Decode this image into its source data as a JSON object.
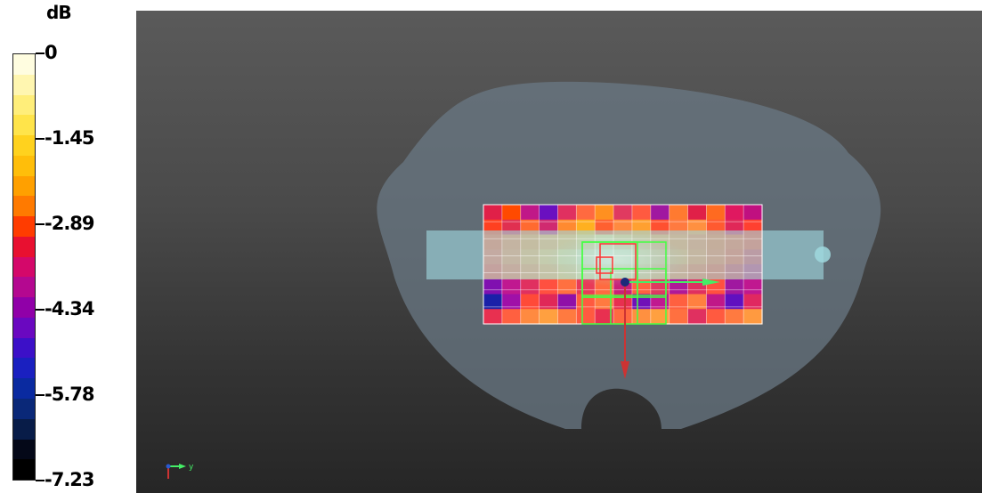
{
  "legend": {
    "unit": "dB",
    "ticks": [
      "0",
      "-1.45",
      "-2.89",
      "-4.34",
      "-5.78",
      "-7.23"
    ],
    "colors": [
      "#fffde0",
      "#fff6b0",
      "#ffee7a",
      "#ffe44a",
      "#ffd21e",
      "#ffbe0a",
      "#ffa000",
      "#ff7a00",
      "#ff3c00",
      "#e81030",
      "#d4086a",
      "#b40890",
      "#9000a8",
      "#6a08c0",
      "#3c10c8",
      "#1a20c0",
      "#0a2aa0",
      "#0a2878",
      "#081c48",
      "#040818",
      "#000000"
    ]
  },
  "scene": {
    "colors": {
      "background": "#4a4a4a",
      "phantom": "#6a7884",
      "probe_strip": "#9fd8de",
      "grid_line": "#ffffff",
      "green_frame": "#44ff44",
      "red_frame": "#ff3333",
      "z_axis": "#cc3333",
      "y_axis": "#44ee66",
      "origin": "#1a2a7a"
    },
    "axis_label": "y",
    "heatmap_rows": [
      [
        "#e02048",
        "#ff4a00",
        "#c01888",
        "#6a10c0",
        "#e03060",
        "#ff6a40",
        "#ff9020",
        "#e03a60",
        "#ff5a40",
        "#a018a0",
        "#ff7a30",
        "#e02048",
        "#ff6a20",
        "#e01860",
        "#c01080"
      ],
      [
        "#ff4020",
        "#e03050",
        "#ff6a30",
        "#d02a70",
        "#ff8a30",
        "#ffb020",
        "#ff6030",
        "#ff8a40",
        "#ffa030",
        "#ff5030",
        "#ff7a40",
        "#ff9040",
        "#ff5a30",
        "#e02858",
        "#ff4030"
      ],
      [
        "#ff5a30",
        "#ff7a40",
        "#ff9040",
        "#ffa050",
        "#ffb050",
        "#ffc860",
        "#ffd878",
        "#ffc060",
        "#ffb050",
        "#ff9a48",
        "#ff8a40",
        "#ff7a40",
        "#ff6a30",
        "#ff5a30",
        "#ff4a30"
      ],
      [
        "#ff6040",
        "#ff8048",
        "#ffa050",
        "#ffb860",
        "#ffd070",
        "#ffe090",
        "#fff0b0",
        "#ffe49a",
        "#ffc868",
        "#ffb058",
        "#ff9848",
        "#ff8040",
        "#ff6a38",
        "#ff5030",
        "#e83a48"
      ],
      [
        "#ff4a38",
        "#ff6a40",
        "#ff8a48",
        "#ffa050",
        "#ffb858",
        "#ffd070",
        "#ffe088",
        "#ffd070",
        "#ffb058",
        "#ff9848",
        "#ff7a40",
        "#ff6438",
        "#ff5030",
        "#e83848",
        "#d02a68"
      ],
      [
        "#8010b0",
        "#c01890",
        "#e03060",
        "#ff5040",
        "#ff7040",
        "#e83a58",
        "#ff6a40",
        "#c82078",
        "#ff6040",
        "#e03a60",
        "#b01898",
        "#e03060",
        "#ff5040",
        "#a018a0",
        "#c01890"
      ],
      [
        "#1a20a8",
        "#a010a8",
        "#ff4a38",
        "#e02858",
        "#9010a8",
        "#ff5a40",
        "#ff7a40",
        "#e83050",
        "#7010b8",
        "#c01890",
        "#ff6040",
        "#ff8040",
        "#c01888",
        "#6010c0",
        "#e02860"
      ],
      [
        "#e83050",
        "#ff6040",
        "#ff8a40",
        "#ffa040",
        "#ff7a40",
        "#ff5a40",
        "#e83050",
        "#ff6a40",
        "#ff9040",
        "#ffa040",
        "#ff7040",
        "#e03060",
        "#ff5a40",
        "#ff7a40",
        "#ff9a40"
      ]
    ]
  }
}
